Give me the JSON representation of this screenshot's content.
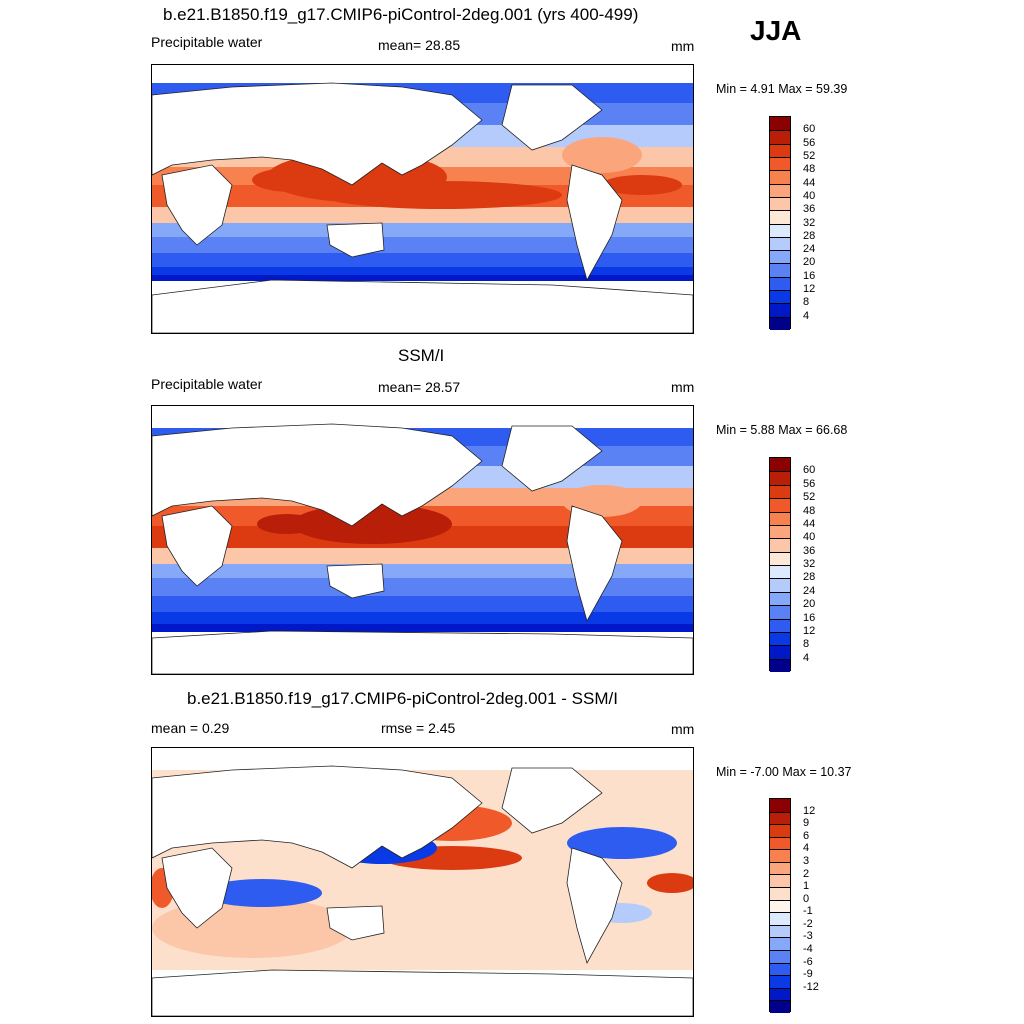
{
  "season": "JJA",
  "colors": {
    "precip_scale": [
      "#00008b",
      "#0018c8",
      "#0a3ae6",
      "#2f5cf0",
      "#5a82f5",
      "#86a8f8",
      "#b4cbfb",
      "#dde9fd",
      "#fde7d6",
      "#fcc7a8",
      "#fba57c",
      "#f8824f",
      "#f05a2a",
      "#dc3a10",
      "#b91e08",
      "#8b0000"
    ],
    "diff_scale": [
      "#00008b",
      "#0018c8",
      "#0a3ae6",
      "#2f5cf0",
      "#5a82f5",
      "#86a8f8",
      "#b4cbfb",
      "#dde9fd",
      "#fff4ec",
      "#fde0cc",
      "#fcc7a8",
      "#fba57c",
      "#f8824f",
      "#f05a2a",
      "#dc3a10",
      "#b91e08",
      "#8b0000"
    ]
  },
  "panels": [
    {
      "title": "b.e21.B1850.f19_g17.CMIP6-piControl-2deg.001 (yrs 400-499)",
      "variable": "Precipitable water",
      "stat1": "mean=  28.85",
      "stat2": "",
      "units": "mm",
      "minmax": "Min =   4.91 Max =  59.39",
      "ticks": [
        "60",
        "56",
        "52",
        "48",
        "44",
        "40",
        "36",
        "32",
        "28",
        "24",
        "20",
        "16",
        "12",
        "8",
        "4"
      ]
    },
    {
      "title": "SSM/I",
      "variable": "Precipitable water",
      "stat1": "mean=  28.57",
      "stat2": "",
      "units": "mm",
      "minmax": "Min =   5.88 Max =  66.68",
      "ticks": [
        "60",
        "56",
        "52",
        "48",
        "44",
        "40",
        "36",
        "32",
        "28",
        "24",
        "20",
        "16",
        "12",
        "8",
        "4"
      ]
    },
    {
      "title": "b.e21.B1850.f19_g17.CMIP6-piControl-2deg.001 - SSM/I",
      "variable": "",
      "stat1": "mean =   0.29",
      "stat2": "rmse =   2.45",
      "units": "mm",
      "minmax": "Min =  -7.00 Max =  10.37",
      "ticks": [
        "12",
        "9",
        "6",
        "4",
        "3",
        "2",
        "1",
        "0",
        "-1",
        "-2",
        "-3",
        "-4",
        "-6",
        "-9",
        "-12"
      ]
    }
  ]
}
